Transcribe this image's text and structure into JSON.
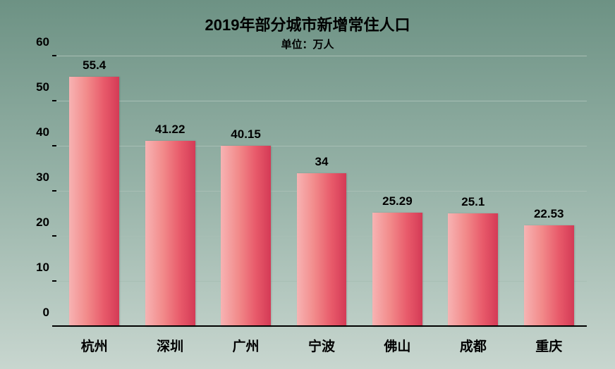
{
  "chart": {
    "type": "bar",
    "title": "2019年部分城市新增常住人口",
    "title_fontsize": 22,
    "subtitle": "单位：万人",
    "subtitle_fontsize": 15,
    "categories": [
      "杭州",
      "深圳",
      "广州",
      "宁波",
      "佛山",
      "成都",
      "重庆"
    ],
    "values": [
      55.4,
      41.22,
      40.15,
      34,
      25.29,
      25.1,
      22.53
    ],
    "data_labels": [
      "55.4",
      "41.22",
      "40.15",
      "34",
      "25.29",
      "25.1",
      "22.53"
    ],
    "ylim": [
      0,
      60
    ],
    "ytick_step": 10,
    "y_ticks": [
      0,
      10,
      20,
      30,
      40,
      50,
      60
    ],
    "y_tick_labels": [
      "0",
      "10",
      "20",
      "30",
      "40",
      "50",
      "60"
    ],
    "label_fontsize": 17,
    "datalabel_fontsize": 17,
    "xlabel_fontsize": 19,
    "bar_gradient_from": "#f7b3b3",
    "bar_gradient_to": "#d43a56",
    "grid_color": "#a8beb4",
    "axis_color": "#000000",
    "background_gradient_top": "#6d9284",
    "background_gradient_bottom": "#c8d6cf",
    "bar_width_ratio": 0.66
  }
}
